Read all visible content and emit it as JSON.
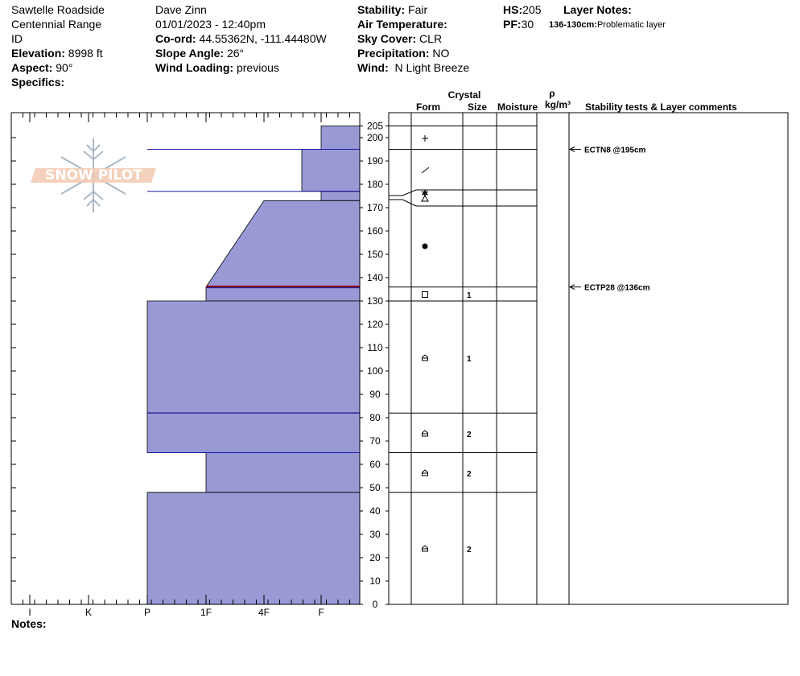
{
  "header": {
    "location": "Sawtelle Roadside",
    "range": "Centennial Range",
    "state": "ID",
    "elevation_label": "Elevation:",
    "elevation": "8998 ft",
    "aspect_label": "Aspect:",
    "aspect": "90°",
    "specifics_label": "Specifics:",
    "observer": "Dave Zinn",
    "datetime": "01/01/2023 - 12:40pm",
    "coord_label": "Co-ord:",
    "coord": "44.55362N, -111.44480W",
    "slope_label": "Slope Angle:",
    "slope": "26°",
    "wind_loading_label": "Wind Loading:",
    "wind_loading": "previous",
    "stability_label": "Stability:",
    "stability": "Fair",
    "air_temp_label": "Air Temperature:",
    "air_temp": "",
    "sky_label": "Sky Cover:",
    "sky": "CLR",
    "precip_label": "Precipitation:",
    "precip": "NO",
    "wind_label": "Wind:",
    "wind": "N Light Breeze",
    "hs_label": "HS:",
    "hs": "205",
    "pf_label": "PF:",
    "pf": "30",
    "layer_notes_label": "Layer Notes:",
    "layer_note_range": "136-130cm:",
    "layer_note_text": "Problematic layer"
  },
  "logo_text": "SNOW PILOT",
  "notes_label": "Notes:",
  "colors": {
    "fill": "#9999d6",
    "layer_line": "#1a1aa6",
    "weak_line": "#cc0000"
  },
  "chart_data": {
    "type": "snow_profile",
    "y_axis": {
      "min": 0,
      "max": 210,
      "ticks": [
        0,
        10,
        20,
        30,
        40,
        50,
        60,
        70,
        80,
        90,
        100,
        110,
        120,
        130,
        140,
        150,
        160,
        170,
        180,
        190,
        200,
        205
      ]
    },
    "hardness_labels": [
      "I",
      "K",
      "P",
      "1F",
      "4F",
      "F"
    ],
    "hardness_profile": [
      {
        "top": 205,
        "bottom": 195,
        "hardness": "F+"
      },
      {
        "top": 195,
        "bottom": 175,
        "hardness": "F-"
      },
      {
        "top": 175,
        "bottom": 173,
        "hardness": "F+"
      },
      {
        "top": 173,
        "bottom": 136,
        "hardness": "4F to 1F"
      },
      {
        "top": 136,
        "bottom": 130,
        "hardness": "1F"
      },
      {
        "top": 130,
        "bottom": 82,
        "hardness": "P"
      },
      {
        "top": 82,
        "bottom": 65,
        "hardness": "P"
      },
      {
        "top": 65,
        "bottom": 48,
        "hardness": "1F"
      },
      {
        "top": 48,
        "bottom": 0,
        "hardness": "P"
      }
    ],
    "layer_boundaries": [
      205,
      195,
      177,
      170,
      136,
      130,
      82,
      65,
      48
    ],
    "weak_layer": 136,
    "columns": {
      "crystal_label": "Crystal",
      "form_label": "Form",
      "size_label": "Size",
      "moisture_label": "Moisture",
      "rho_label": "ρ",
      "density_unit": "kg/m³",
      "comments_label": "Stability tests & Layer comments"
    },
    "layers": [
      {
        "y": 200,
        "form": "+",
        "size": ""
      },
      {
        "y": 186,
        "form": "/",
        "size": ""
      },
      {
        "y": 174,
        "form": "⚹",
        "size": ""
      },
      {
        "y": 153,
        "form": "●",
        "size": ""
      },
      {
        "y": 133,
        "form": "□",
        "size": "1"
      },
      {
        "y": 106,
        "form": "^",
        "size": "1"
      },
      {
        "y": 73,
        "form": "^",
        "size": "2"
      },
      {
        "y": 56,
        "form": "^",
        "size": "2"
      },
      {
        "y": 24,
        "form": "^",
        "size": "2"
      }
    ],
    "tests": [
      {
        "y": 195,
        "label": "ECTN8 @195cm"
      },
      {
        "y": 136,
        "label": "ECTP28 @136cm"
      }
    ]
  }
}
